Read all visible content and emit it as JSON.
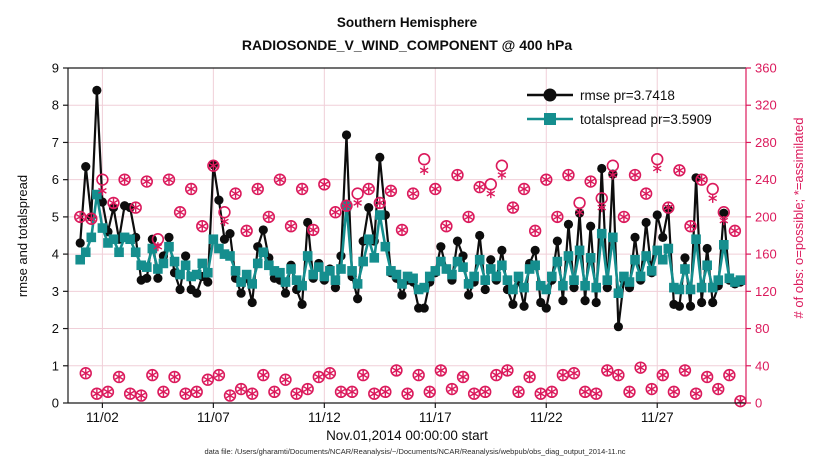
{
  "figure": {
    "title": "Southern Hemisphere",
    "subtitle": "RADIOSONDE_V_WIND_COMPONENT @ 400 hPa",
    "footer": "data file: /Users/gharamti/Documents/NCAR/Reanalysis/~/Documents/NCAR/Reanalysis/webpub/obs_diag_output_2014-11.nc"
  },
  "axes": {
    "left_label": "rmse and totalspread",
    "right_label": "# of obs: o=possible; *=assimilated",
    "x_label": "Nov.01,2014 00:00:00 start"
  },
  "legend": {
    "rmse": "rmse pr=3.7418",
    "totalspread": "totalspread pr=3.5909"
  },
  "colors": {
    "rmse": "#0d0d0d",
    "totalspread": "#158e8e",
    "obs": "#db1a5c",
    "grid": "#f0cfd8",
    "spine": "#1a1a1a",
    "footer_text": "#2a2a2a"
  },
  "chart_data": {
    "type": "line",
    "title": "Southern Hemisphere",
    "subtitle": "RADIOSONDE_V_WIND_COMPONENT @ 400 hPa",
    "xlabel": "Nov.01,2014 00:00:00 start",
    "ylabel_left": "rmse and totalspread",
    "ylabel_right": "# of obs: o=possible; *=assimilated",
    "ylim_left": [
      0,
      9
    ],
    "ylim_right": [
      0,
      360
    ],
    "xlim_days": [
      0.45,
      31.0
    ],
    "grid": true,
    "legend_position": "top-right-inside",
    "x_start_day": 1.0,
    "x_step_days": 0.25,
    "n_points": 120,
    "x_ticks": {
      "days": [
        2,
        7,
        12,
        17,
        22,
        27
      ],
      "labels": [
        "11/02",
        "11/07",
        "11/12",
        "11/17",
        "11/22",
        "11/27"
      ]
    },
    "y_ticks_left": [
      0,
      1,
      2,
      3,
      4,
      5,
      6,
      7,
      8,
      9
    ],
    "y_ticks_right": [
      0,
      40,
      80,
      120,
      160,
      200,
      240,
      280,
      320,
      360
    ],
    "series": [
      {
        "name": "rmse pr=3.7418",
        "axis": "left",
        "marker": "filled-circle",
        "values": [
          4.3,
          6.35,
          5.0,
          8.4,
          5.4,
          4.6,
          5.25,
          4.4,
          5.3,
          5.25,
          4.45,
          3.3,
          3.35,
          4.4,
          3.35,
          3.95,
          4.45,
          3.5,
          3.05,
          3.95,
          3.05,
          2.95,
          3.4,
          3.25,
          6.4,
          5.45,
          4.4,
          4.55,
          3.35,
          2.95,
          3.35,
          2.7,
          4.2,
          4.65,
          3.9,
          3.35,
          3.3,
          2.95,
          3.7,
          3.05,
          2.65,
          4.85,
          3.35,
          3.75,
          3.3,
          3.6,
          3.1,
          3.95,
          7.2,
          3.4,
          2.8,
          4.35,
          5.25,
          4.35,
          6.6,
          5.05,
          3.5,
          3.35,
          2.9,
          3.3,
          3.25,
          2.55,
          2.55,
          3.25,
          3.5,
          4.2,
          3.6,
          3.3,
          4.35,
          3.95,
          2.9,
          3.25,
          4.5,
          3.05,
          3.85,
          3.3,
          4.1,
          3.05,
          2.65,
          3.3,
          2.6,
          3.75,
          4.1,
          2.7,
          2.55,
          3.3,
          4.35,
          2.75,
          4.8,
          3.1,
          5.1,
          2.75,
          4.75,
          2.7,
          6.3,
          3.1,
          6.15,
          2.05,
          3.3,
          3.1,
          4.45,
          3.3,
          4.85,
          3.5,
          5.05,
          4.45,
          5.2,
          2.65,
          2.6,
          3.9,
          2.6,
          6.05,
          2.7,
          4.15,
          2.7,
          3.15,
          5.1,
          3.3,
          3.2,
          3.25
        ]
      },
      {
        "name": "totalspread pr=3.5909",
        "axis": "left",
        "marker": "filled-square",
        "values": [
          3.85,
          4.05,
          4.45,
          5.6,
          4.7,
          4.3,
          4.4,
          4.05,
          4.45,
          4.4,
          4.05,
          3.7,
          3.65,
          4.15,
          3.6,
          3.75,
          4.2,
          3.8,
          3.45,
          3.7,
          3.4,
          3.45,
          3.75,
          3.5,
          4.4,
          4.15,
          4.0,
          3.95,
          3.55,
          3.25,
          3.45,
          3.2,
          3.75,
          4.05,
          3.7,
          3.55,
          3.5,
          3.25,
          3.6,
          3.3,
          3.15,
          3.95,
          3.45,
          3.65,
          3.4,
          3.55,
          3.3,
          3.6,
          5.3,
          3.55,
          3.2,
          3.8,
          4.4,
          3.9,
          5.05,
          4.2,
          3.55,
          3.45,
          3.2,
          3.4,
          3.35,
          3.05,
          3.1,
          3.4,
          3.55,
          3.8,
          3.6,
          3.45,
          3.8,
          3.65,
          3.2,
          3.4,
          3.85,
          3.3,
          3.6,
          3.4,
          3.7,
          3.3,
          3.05,
          3.4,
          3.1,
          3.6,
          3.7,
          3.15,
          3.05,
          3.4,
          3.8,
          3.15,
          3.95,
          3.3,
          4.1,
          3.15,
          3.9,
          3.1,
          4.55,
          3.3,
          4.45,
          2.95,
          3.4,
          3.25,
          3.85,
          3.4,
          3.95,
          3.55,
          4.1,
          3.85,
          4.15,
          3.1,
          3.05,
          3.6,
          3.05,
          4.4,
          3.1,
          3.7,
          3.1,
          3.3,
          4.25,
          3.35,
          3.25,
          3.3
        ]
      },
      {
        "name": "# of obs possible",
        "axis": "right",
        "marker": "open-circle",
        "values": [
          200,
          32,
          198,
          10,
          240,
          12,
          215,
          28,
          240,
          10,
          210,
          8,
          238,
          30,
          176,
          12,
          240,
          28,
          205,
          10,
          230,
          12,
          190,
          25,
          255,
          30,
          205,
          8,
          225,
          15,
          185,
          10,
          230,
          30,
          200,
          12,
          240,
          25,
          190,
          10,
          230,
          15,
          186,
          28,
          235,
          32,
          205,
          12,
          212,
          12,
          225,
          30,
          230,
          10,
          215,
          12,
          228,
          35,
          186,
          10,
          225,
          30,
          262,
          12,
          230,
          35,
          190,
          15,
          245,
          28,
          200,
          10,
          232,
          12,
          235,
          30,
          255,
          35,
          210,
          12,
          230,
          28,
          185,
          10,
          240,
          12,
          200,
          30,
          245,
          32,
          215,
          12,
          238,
          10,
          220,
          35,
          255,
          30,
          200,
          12,
          245,
          38,
          225,
          15,
          262,
          30,
          210,
          12,
          250,
          35,
          190,
          10,
          240,
          28,
          230,
          15,
          205,
          30,
          185,
          2
        ]
      },
      {
        "name": "# of obs assimilated",
        "axis": "right",
        "marker": "asterisk",
        "values": [
          200,
          32,
          198,
          10,
          228,
          12,
          215,
          28,
          240,
          10,
          210,
          8,
          238,
          30,
          168,
          12,
          240,
          28,
          205,
          10,
          230,
          12,
          190,
          25,
          255,
          30,
          195,
          8,
          225,
          15,
          185,
          10,
          230,
          30,
          200,
          12,
          240,
          25,
          190,
          10,
          230,
          15,
          186,
          28,
          235,
          32,
          205,
          12,
          212,
          12,
          215,
          30,
          230,
          10,
          215,
          12,
          228,
          35,
          186,
          10,
          225,
          30,
          250,
          12,
          230,
          35,
          190,
          15,
          245,
          28,
          200,
          10,
          232,
          12,
          225,
          30,
          245,
          35,
          210,
          12,
          230,
          28,
          185,
          10,
          240,
          12,
          200,
          30,
          245,
          32,
          205,
          12,
          238,
          10,
          210,
          35,
          245,
          30,
          200,
          12,
          245,
          38,
          225,
          15,
          252,
          30,
          210,
          12,
          250,
          35,
          190,
          10,
          240,
          28,
          220,
          15,
          196,
          30,
          185,
          2
        ]
      }
    ]
  }
}
